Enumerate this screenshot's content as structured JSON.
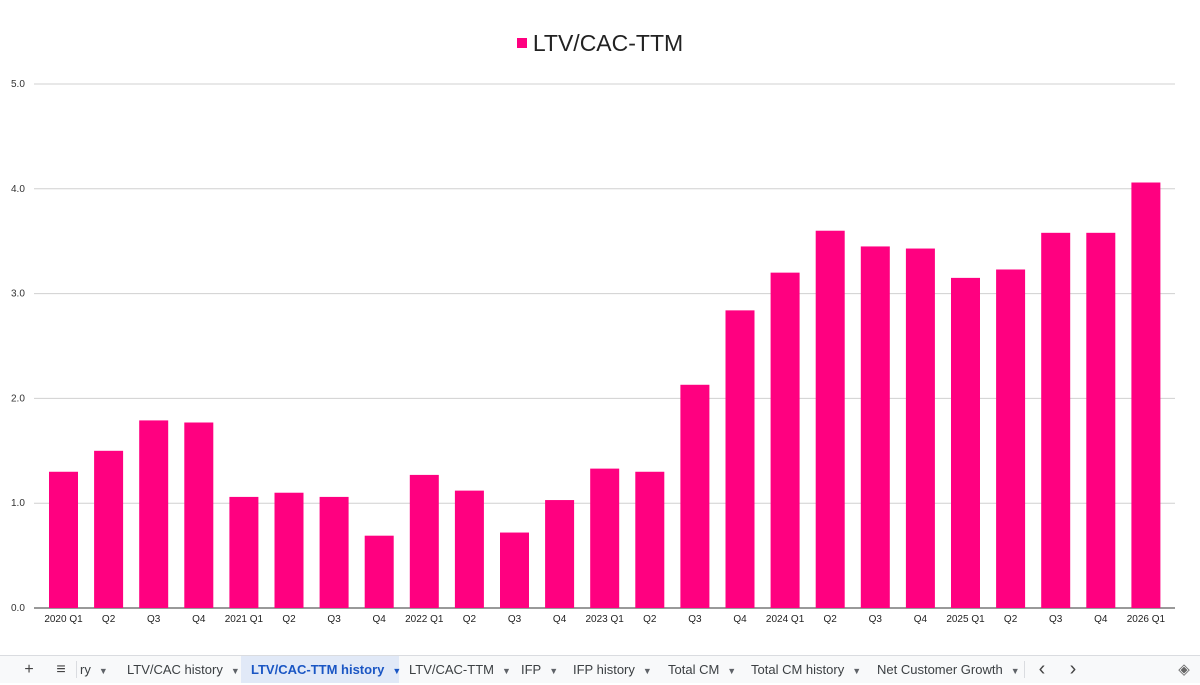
{
  "chart_data": {
    "type": "bar",
    "categories": [
      "2020 Q1",
      "Q2",
      "Q3",
      "Q4",
      "2021 Q1",
      "Q2",
      "Q3",
      "Q4",
      "2022 Q1",
      "Q2",
      "Q3",
      "Q4",
      "2023 Q1",
      "Q2",
      "Q3",
      "Q4",
      "2024 Q1",
      "Q2",
      "Q3",
      "Q4",
      "2025 Q1",
      "Q2",
      "Q3",
      "Q4",
      "2026 Q1"
    ],
    "series": [
      {
        "name": "LTV/CAC-TTM",
        "color": "#ff0080",
        "values": [
          1.3,
          1.5,
          1.79,
          1.77,
          1.06,
          1.1,
          1.06,
          0.69,
          1.27,
          1.12,
          0.72,
          1.03,
          1.33,
          1.3,
          2.13,
          2.84,
          3.2,
          3.6,
          3.45,
          3.43,
          3.15,
          3.23,
          3.58,
          3.58,
          4.06
        ]
      }
    ],
    "y_ticks": [
      "0.0",
      "1.0",
      "2.0",
      "3.0",
      "4.0",
      "5.0"
    ],
    "ylim": [
      0,
      5
    ],
    "grid": true,
    "legend_position": "top-center"
  },
  "tabs": {
    "add_icon": "+",
    "menu_icon": "≡",
    "items": [
      {
        "label": "ry",
        "active": false
      },
      {
        "label": "LTV/CAC history",
        "active": false
      },
      {
        "label": "LTV/CAC-TTM history",
        "active": true
      },
      {
        "label": "LTV/CAC-TTM",
        "active": false
      },
      {
        "label": "IFP",
        "active": false
      },
      {
        "label": "IFP history",
        "active": false
      },
      {
        "label": "Total CM",
        "active": false
      },
      {
        "label": "Total CM history",
        "active": false
      },
      {
        "label": "Net Customer Growth",
        "active": false
      }
    ],
    "prev_icon": "‹",
    "next_icon": "›",
    "explore_icon": "◈"
  }
}
